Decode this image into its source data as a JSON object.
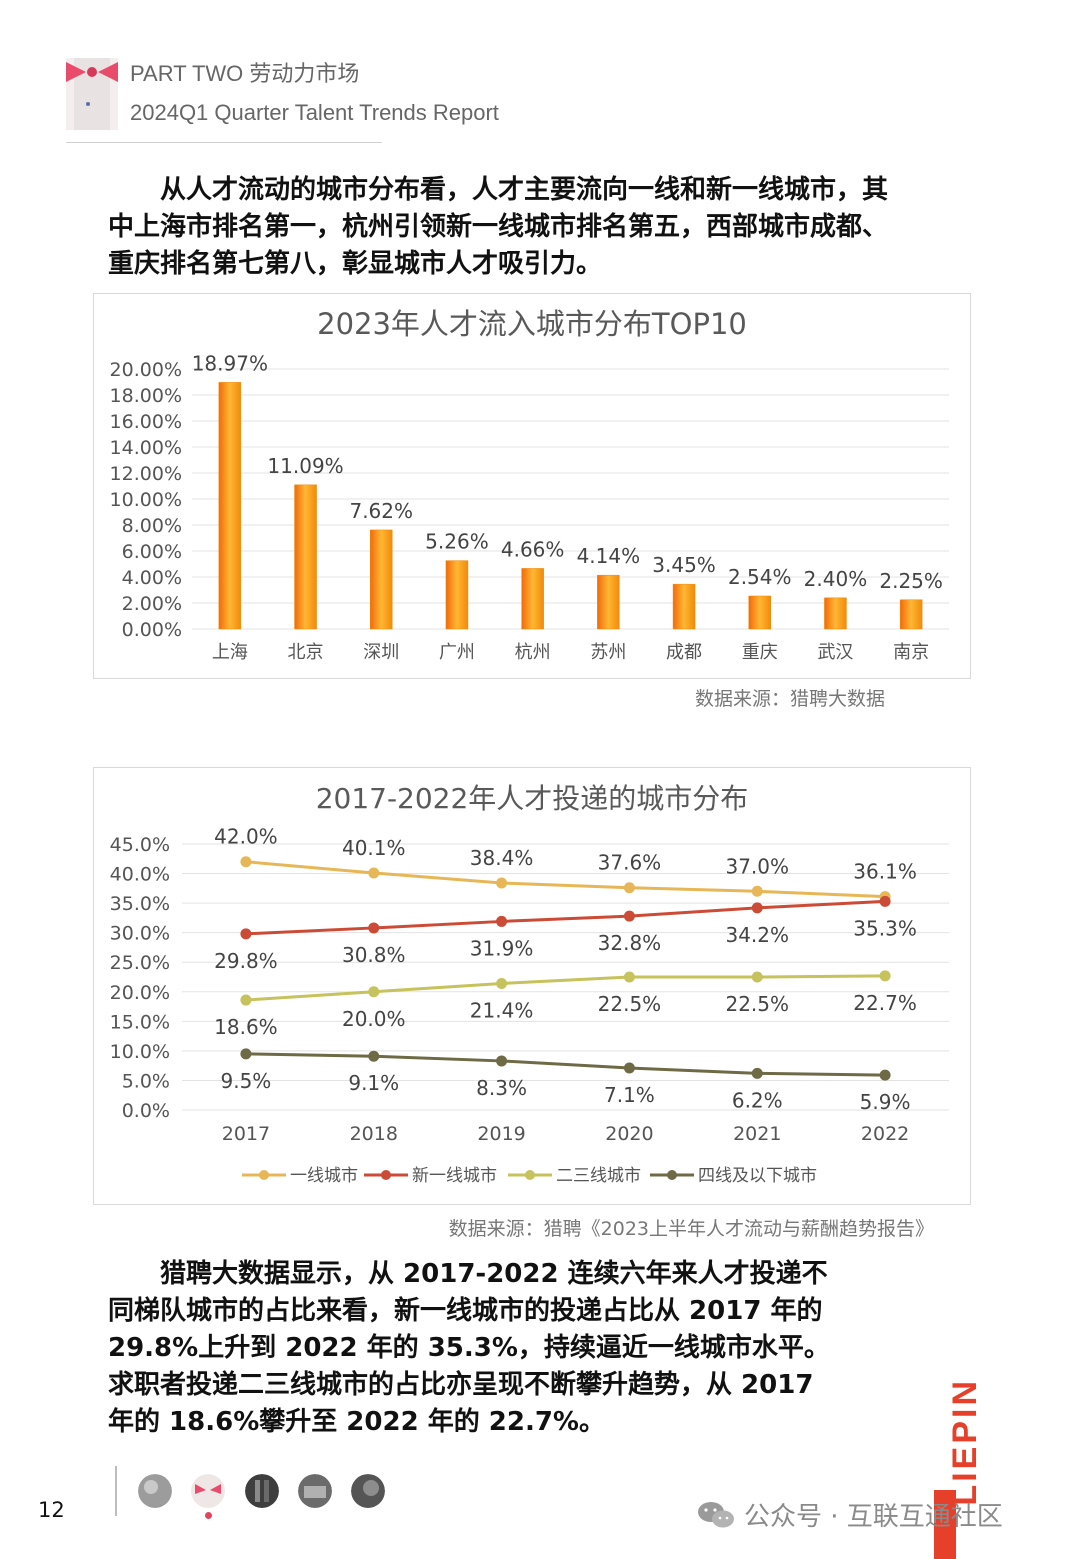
{
  "header": {
    "line1": "PART TWO 劳动力市场",
    "line2": "2024Q1 Quarter Talent Trends Report"
  },
  "intro": {
    "lines": [
      "　　从人才流动的城市分布看，人才主要流向一线和新一线城市，其",
      "中上海市排名第一，杭州引领新一线城市排名第五，西部城市成都、",
      "重庆排名第七第八，彰显城市人才吸引力。"
    ]
  },
  "colors": {
    "bar_orange": "#f08a0c",
    "tier1": "#e7b757",
    "new_tier1": "#cb4b36",
    "tier23": "#c6c25c",
    "tier4": "#6e6a45",
    "brand_red": "#e7402a"
  },
  "chart_data": [
    {
      "type": "bar",
      "title": "2023年人才流入城市分布TOP10",
      "categories": [
        "上海",
        "北京",
        "深圳",
        "广州",
        "杭州",
        "苏州",
        "成都",
        "重庆",
        "武汉",
        "南京"
      ],
      "values": [
        18.97,
        11.09,
        7.62,
        5.26,
        4.66,
        4.14,
        3.45,
        2.54,
        2.4,
        2.25
      ],
      "data_labels": [
        "18.97%",
        "11.09%",
        "7.62%",
        "5.26%",
        "4.66%",
        "4.14%",
        "3.45%",
        "2.54%",
        "2.40%",
        "2.25%"
      ],
      "yticks": [
        "0.00%",
        "2.00%",
        "4.00%",
        "6.00%",
        "8.00%",
        "10.00%",
        "12.00%",
        "14.00%",
        "16.00%",
        "18.00%",
        "20.00%"
      ],
      "ylim": [
        0,
        20
      ],
      "grid": true,
      "source": "数据来源：猎聘大数据"
    },
    {
      "type": "line",
      "title": "2017-2022年人才投递的城市分布",
      "x": [
        "2017",
        "2018",
        "2019",
        "2020",
        "2021",
        "2022"
      ],
      "yticks": [
        "0.0%",
        "5.0%",
        "10.0%",
        "15.0%",
        "20.0%",
        "25.0%",
        "30.0%",
        "35.0%",
        "40.0%",
        "45.0%"
      ],
      "ylim": [
        0,
        45
      ],
      "grid": true,
      "legend_position": "bottom",
      "series": [
        {
          "name": "一线城市",
          "values": [
            42.0,
            40.1,
            38.4,
            37.6,
            37.0,
            36.1
          ],
          "labels": [
            "42.0%",
            "40.1%",
            "38.4%",
            "37.6%",
            "37.0%",
            "36.1%"
          ],
          "label_position": "above"
        },
        {
          "name": "新一线城市",
          "values": [
            29.8,
            30.8,
            31.9,
            32.8,
            34.2,
            35.3
          ],
          "labels": [
            "29.8%",
            "30.8%",
            "31.9%",
            "32.8%",
            "34.2%",
            "35.3%"
          ],
          "label_position": "below"
        },
        {
          "name": "二三线城市",
          "values": [
            18.6,
            20.0,
            21.4,
            22.5,
            22.5,
            22.7
          ],
          "labels": [
            "18.6%",
            "20.0%",
            "21.4%",
            "22.5%",
            "22.5%",
            "22.7%"
          ],
          "label_position": "below"
        },
        {
          "name": "四线及以下城市",
          "values": [
            9.5,
            9.1,
            8.3,
            7.1,
            6.2,
            5.9
          ],
          "labels": [
            "9.5%",
            "9.1%",
            "8.3%",
            "7.1%",
            "6.2%",
            "5.9%"
          ],
          "label_position": "below"
        }
      ],
      "source": "数据来源：猎聘《2023上半年人才流动与薪酬趋势报告》"
    }
  ],
  "summary": {
    "lines": [
      "　　猎聘大数据显示，从 2017-2022 连续六年来人才投递不",
      "同梯队城市的占比来看，新一线城市的投递占比从 2017 年的",
      "29.8%上升到 2022 年的 35.3%，持续逼近一线城市水平。",
      "求职者投递二三线城市的占比亦呈现不断攀升趋势，从 2017",
      "年的 18.6%攀升至 2022 年的 22.7%。"
    ]
  },
  "footer": {
    "page_number": "12",
    "brand": "LIEPIN",
    "watermark": "公众号 · 互联互通社区"
  }
}
